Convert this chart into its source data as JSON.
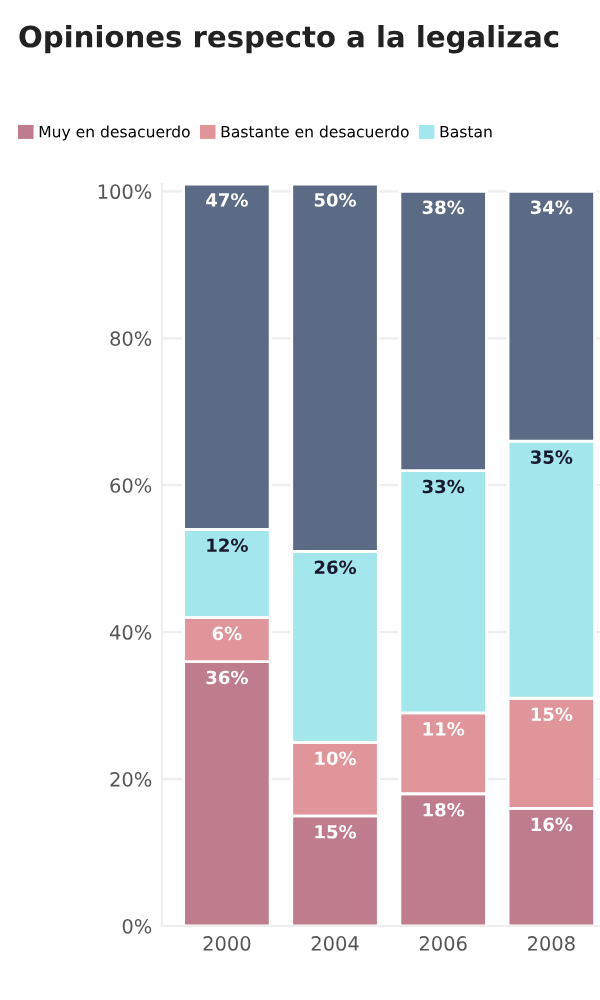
{
  "chart_data": {
    "type": "bar",
    "stacked": true,
    "title": "Opiniones respecto a la legalizac",
    "categories": [
      "2000",
      "2004",
      "2006",
      "2008"
    ],
    "series": [
      {
        "name": "Muy en desacuerdo",
        "color": "#bf7c8c",
        "values": [
          36,
          15,
          18,
          16
        ],
        "value_labels": [
          "36%",
          "15%",
          "18%",
          "16%"
        ]
      },
      {
        "name": "Bastante en desacuerdo",
        "color": "#e0959a",
        "values": [
          6,
          10,
          11,
          15
        ],
        "value_labels": [
          "6%",
          "10%",
          "11%",
          "15%"
        ]
      },
      {
        "name": "Bastan",
        "color": "#a3e6ec",
        "values": [
          12,
          26,
          33,
          35
        ],
        "value_labels": [
          "12%",
          "26%",
          "33%",
          "35%"
        ]
      },
      {
        "color": "#5b6b85",
        "values": [
          47,
          50,
          38,
          34
        ],
        "value_labels": [
          "47%",
          "50%",
          "38%",
          "34%"
        ]
      }
    ],
    "ylim": [
      0,
      101
    ],
    "yticks": [
      {
        "value": 0,
        "label": "0%"
      },
      {
        "value": 20,
        "label": "20%"
      },
      {
        "value": 40,
        "label": "40%"
      },
      {
        "value": 60,
        "label": "60%"
      },
      {
        "value": 80,
        "label": "80%"
      },
      {
        "value": 100,
        "label": "100%"
      }
    ],
    "grid": "y",
    "legend": "top left"
  }
}
